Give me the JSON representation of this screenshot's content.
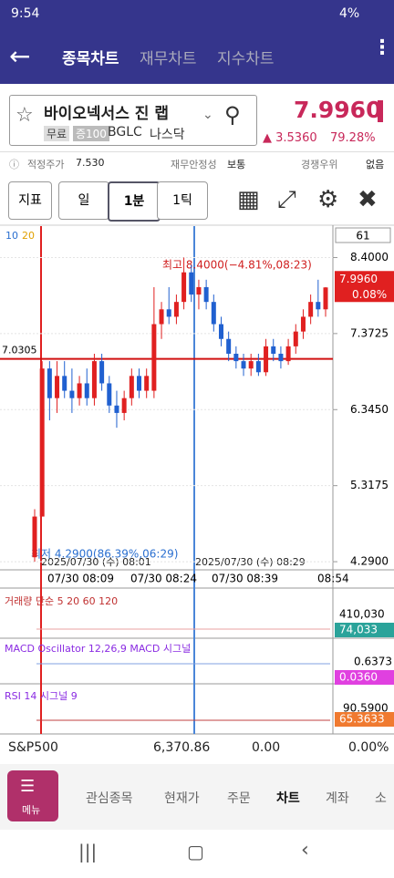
{
  "status_bar": {
    "time": "9:54",
    "battery": "4%"
  },
  "tabs": [
    "종목차트",
    "재무차트",
    "지수차트"
  ],
  "stock": {
    "name": "바이오넥서스 진 랩",
    "tags": [
      "무료",
      "증100"
    ],
    "ticker": "BGLC",
    "market": "나스닥",
    "price": "7.9960",
    "change": "▲ 3.5360",
    "change_pct": "79.28%"
  },
  "info": {
    "fair_price_label": "적정주가",
    "fair_price": "7.530",
    "stability_label": "재무안정성",
    "stability": "보통",
    "competitive_label": "경쟁우위",
    "competitive": "없음"
  },
  "toolbar": [
    "지표",
    "일",
    "1분",
    "1틱"
  ],
  "chart": {
    "type": "candlestick",
    "ma_legend": [
      "10",
      "20"
    ],
    "zoom_value": "61",
    "ylim": [
      4.18,
      8.8
    ],
    "yticks": [
      {
        "value": 8.4,
        "label": "8.4000"
      },
      {
        "value": 7.3725,
        "label": "7.3725"
      },
      {
        "value": 6.345,
        "label": "6.3450"
      },
      {
        "value": 5.3175,
        "label": "5.3175"
      },
      {
        "value": 4.29,
        "label": "4.2900"
      }
    ],
    "candles": [
      [
        4.35,
        5.0,
        4.29,
        4.9
      ],
      [
        4.9,
        7.0,
        4.9,
        6.9
      ],
      [
        6.9,
        7.0,
        6.2,
        6.5
      ],
      [
        6.5,
        7.0,
        6.3,
        6.8
      ],
      [
        6.8,
        7.0,
        6.5,
        6.6
      ],
      [
        6.6,
        6.9,
        6.3,
        6.5
      ],
      [
        6.5,
        6.8,
        6.4,
        6.7
      ],
      [
        6.7,
        6.9,
        6.4,
        6.5
      ],
      [
        6.5,
        7.1,
        6.4,
        7.0
      ],
      [
        7.0,
        7.1,
        6.6,
        6.7
      ],
      [
        6.7,
        6.8,
        6.3,
        6.4
      ],
      [
        6.4,
        6.6,
        6.1,
        6.3
      ],
      [
        6.3,
        6.6,
        6.2,
        6.5
      ],
      [
        6.5,
        6.9,
        6.4,
        6.8
      ],
      [
        6.8,
        6.9,
        6.5,
        6.6
      ],
      [
        6.6,
        6.9,
        6.5,
        6.8
      ],
      [
        6.6,
        8.0,
        6.5,
        7.5
      ],
      [
        7.5,
        7.8,
        7.3,
        7.7
      ],
      [
        7.7,
        8.0,
        7.5,
        7.6
      ],
      [
        7.6,
        7.9,
        7.5,
        7.8
      ],
      [
        7.8,
        8.4,
        7.7,
        8.2
      ],
      [
        8.2,
        8.3,
        7.8,
        7.9
      ],
      [
        7.9,
        8.1,
        7.7,
        8.0
      ],
      [
        8.0,
        8.1,
        7.7,
        7.8
      ],
      [
        7.8,
        7.9,
        7.4,
        7.5
      ],
      [
        7.5,
        7.6,
        7.2,
        7.3
      ],
      [
        7.3,
        7.4,
        7.0,
        7.1
      ],
      [
        7.1,
        7.2,
        6.9,
        7.0
      ],
      [
        7.0,
        7.1,
        6.8,
        6.9
      ],
      [
        6.9,
        7.1,
        6.8,
        7.0
      ],
      [
        7.0,
        7.1,
        6.8,
        6.85
      ],
      [
        6.85,
        7.3,
        6.8,
        7.2
      ],
      [
        7.2,
        7.3,
        7.0,
        7.1
      ],
      [
        7.1,
        7.2,
        6.9,
        7.0
      ],
      [
        7.0,
        7.3,
        6.95,
        7.2
      ],
      [
        7.2,
        7.5,
        7.1,
        7.4
      ],
      [
        7.4,
        7.7,
        7.3,
        7.6
      ],
      [
        7.6,
        7.9,
        7.5,
        7.8
      ],
      [
        7.8,
        8.1,
        7.6,
        7.7
      ],
      [
        7.7,
        8.0,
        7.6,
        7.996
      ]
    ],
    "current_price": {
      "value": 7.996,
      "label": "7.9960"
    },
    "current_change": "0.08%",
    "hline": {
      "value": 7.0305,
      "label": "7.0305"
    },
    "high_note": "최고 8.4000(−4.81%,08:23)",
    "low_note": "최저 4.2900(86.39%,06:29)",
    "cursor_times": [
      "2025/07/30 (수) 08:01",
      "2025/07/30 (수) 08:29"
    ],
    "x_labels": [
      "07/30 08:09",
      "07/30 08:24",
      "07/30 08:39",
      "08:54"
    ]
  },
  "indicators": [
    {
      "title": "거래량 단순 5 20 60 120",
      "max": "410,030",
      "current": "74,033"
    },
    {
      "title": "MACD Oscillator 12,26,9 MACD 시그널",
      "max": "0.6373",
      "current": "0.0360"
    },
    {
      "title": "RSI 14 시그널 9",
      "max": "90.5900",
      "current": "65.3633"
    }
  ],
  "index_row": {
    "name": "S&P500",
    "value": "6,370.86",
    "change": "0.00",
    "change_pct": "0.00%"
  },
  "bottom_nav": {
    "menu": "메뉴",
    "items": [
      "관심종목",
      "현재가",
      "주문",
      "차트",
      "계좌",
      "소"
    ]
  }
}
